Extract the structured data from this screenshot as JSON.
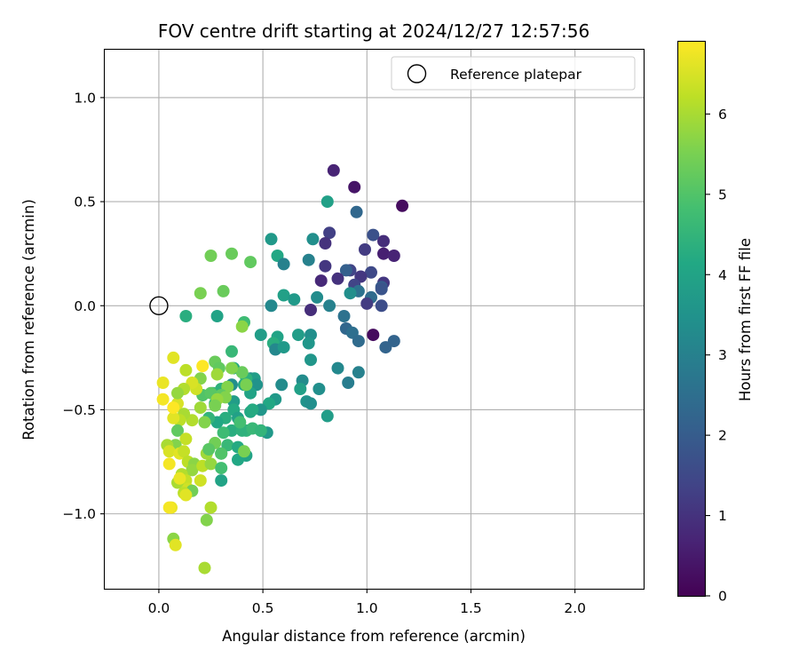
{
  "chart_data": {
    "type": "scatter",
    "title": "FOV centre drift starting at 2024/12/27 12:57:56",
    "xlabel": "Angular distance from reference (arcmin)",
    "ylabel": "Rotation from reference (arcmin)",
    "xlim": [
      -0.26,
      2.33
    ],
    "ylim": [
      -1.36,
      1.23
    ],
    "xticks": [
      0.0,
      0.5,
      1.0,
      1.5,
      2.0
    ],
    "xtick_labels": [
      "0.0",
      "0.5",
      "1.0",
      "1.5",
      "2.0"
    ],
    "yticks": [
      1.0,
      0.5,
      0.0,
      -0.5,
      -1.0
    ],
    "ytick_labels": [
      "1.0",
      "0.5",
      "0.0",
      "−0.5",
      "−1.0"
    ],
    "grid": true,
    "legend": {
      "position": "top-right",
      "entries": [
        "Reference platepar"
      ]
    },
    "reference_point": {
      "x": 0.0,
      "y": 0.0,
      "label": "Reference platepar",
      "marker": "open-circle"
    },
    "colorbar": {
      "label": "Hours from first FF file",
      "colormap": "viridis",
      "range": [
        0,
        6.9
      ],
      "ticks": [
        0,
        1,
        2,
        3,
        4,
        5,
        6
      ],
      "tick_labels": [
        "0",
        "1",
        "2",
        "3",
        "4",
        "5",
        "6"
      ]
    },
    "series": [
      {
        "points": [
          [
            0.84,
            0.65,
            0.7
          ],
          [
            0.94,
            0.57,
            0.4
          ],
          [
            1.17,
            0.48,
            0.2
          ],
          [
            0.95,
            0.45,
            2.3
          ],
          [
            0.82,
            0.35,
            1.3
          ],
          [
            1.03,
            0.34,
            1.7
          ],
          [
            0.8,
            0.3,
            1.0
          ],
          [
            1.08,
            0.31,
            0.9
          ],
          [
            0.99,
            0.27,
            1.2
          ],
          [
            1.08,
            0.25,
            0.6
          ],
          [
            1.13,
            0.24,
            0.7
          ],
          [
            0.8,
            0.19,
            1.1
          ],
          [
            0.92,
            0.17,
            1.4
          ],
          [
            0.9,
            0.17,
            2.1
          ],
          [
            1.02,
            0.16,
            1.5
          ],
          [
            1.08,
            0.11,
            1.1
          ],
          [
            0.86,
            0.13,
            1.0
          ],
          [
            0.97,
            0.14,
            1.1
          ],
          [
            0.78,
            0.12,
            0.8
          ],
          [
            0.94,
            0.1,
            1.4
          ],
          [
            1.07,
            0.09,
            2.0
          ],
          [
            0.96,
            0.07,
            2.6
          ],
          [
            1.07,
            0.08,
            1.8
          ],
          [
            0.92,
            0.06,
            3.4
          ],
          [
            1.02,
            0.04,
            2.4
          ],
          [
            1.0,
            0.01,
            1.2
          ],
          [
            1.07,
            0.0,
            1.6
          ],
          [
            0.73,
            -0.02,
            0.9
          ],
          [
            0.89,
            -0.05,
            2.6
          ],
          [
            0.9,
            -0.11,
            2.3
          ],
          [
            0.93,
            -0.13,
            2.5
          ],
          [
            0.96,
            -0.17,
            2.4
          ],
          [
            1.13,
            -0.17,
            2.2
          ],
          [
            1.03,
            -0.14,
            0.2
          ],
          [
            1.09,
            -0.2,
            2.2
          ],
          [
            0.81,
            0.5,
            3.9
          ],
          [
            0.74,
            0.32,
            3.4
          ],
          [
            0.54,
            0.32,
            3.7
          ],
          [
            0.72,
            0.22,
            3.0
          ],
          [
            0.57,
            0.24,
            4.1
          ],
          [
            0.6,
            0.2,
            3.0
          ],
          [
            0.76,
            0.04,
            3.3
          ],
          [
            0.6,
            0.05,
            3.9
          ],
          [
            0.65,
            0.03,
            3.7
          ],
          [
            0.82,
            0.0,
            3.0
          ],
          [
            0.54,
            0.0,
            3.2
          ],
          [
            0.49,
            -0.14,
            3.8
          ],
          [
            0.57,
            -0.15,
            4.0
          ],
          [
            0.55,
            -0.18,
            4.3
          ],
          [
            0.67,
            -0.14,
            3.8
          ],
          [
            0.73,
            -0.14,
            3.4
          ],
          [
            0.72,
            -0.18,
            3.6
          ],
          [
            0.56,
            -0.21,
            3.2
          ],
          [
            0.6,
            -0.2,
            3.7
          ],
          [
            0.73,
            -0.26,
            3.6
          ],
          [
            0.86,
            -0.3,
            3.2
          ],
          [
            0.96,
            -0.32,
            3.0
          ],
          [
            0.91,
            -0.37,
            2.9
          ],
          [
            0.69,
            -0.36,
            3.3
          ],
          [
            0.59,
            -0.38,
            3.3
          ],
          [
            0.68,
            -0.4,
            3.9
          ],
          [
            0.77,
            -0.4,
            3.4
          ],
          [
            0.81,
            -0.53,
            3.8
          ],
          [
            0.71,
            -0.46,
            3.5
          ],
          [
            0.73,
            -0.47,
            3.4
          ],
          [
            0.56,
            -0.45,
            3.7
          ],
          [
            0.53,
            -0.47,
            4.1
          ],
          [
            0.49,
            -0.5,
            3.6
          ],
          [
            0.44,
            -0.51,
            4.1
          ],
          [
            0.52,
            -0.61,
            3.7
          ],
          [
            0.49,
            -0.6,
            3.5
          ],
          [
            0.44,
            -0.35,
            3.2
          ],
          [
            0.46,
            -0.35,
            3.8
          ],
          [
            0.47,
            -0.38,
            3.5
          ],
          [
            0.44,
            -0.42,
            4.0
          ],
          [
            0.35,
            -0.38,
            3.4
          ],
          [
            0.36,
            -0.46,
            3.8
          ],
          [
            0.36,
            -0.5,
            4.2
          ],
          [
            0.38,
            -0.54,
            3.9
          ],
          [
            0.32,
            -0.54,
            4.3
          ],
          [
            0.35,
            -0.6,
            4.3
          ],
          [
            0.33,
            -0.67,
            4.6
          ],
          [
            0.38,
            -0.68,
            4.2
          ],
          [
            0.42,
            -0.72,
            4.0
          ],
          [
            0.38,
            -0.74,
            4.1
          ],
          [
            0.3,
            -0.71,
            4.1
          ],
          [
            0.3,
            -0.84,
            4.0
          ],
          [
            0.31,
            -0.61,
            4.7
          ],
          [
            0.28,
            -0.56,
            4.1
          ],
          [
            0.27,
            -0.47,
            4.5
          ],
          [
            0.26,
            -0.42,
            4.4
          ],
          [
            0.24,
            -0.54,
            4.5
          ],
          [
            0.41,
            -0.38,
            4.1
          ],
          [
            0.42,
            -0.6,
            4.5
          ],
          [
            0.4,
            -0.6,
            4.4
          ],
          [
            0.39,
            -0.56,
            4.8
          ],
          [
            0.45,
            -0.59,
            4.6
          ],
          [
            0.49,
            -0.6,
            4.5
          ],
          [
            0.45,
            -0.5,
            4.2
          ],
          [
            0.3,
            -0.4,
            4.4
          ],
          [
            0.42,
            -0.35,
            4.4
          ],
          [
            0.36,
            -0.3,
            4.2
          ],
          [
            0.35,
            -0.22,
            4.6
          ],
          [
            0.41,
            -0.08,
            4.7
          ],
          [
            0.13,
            -0.05,
            4.3
          ],
          [
            0.28,
            -0.05,
            4.0
          ],
          [
            0.44,
            0.21,
            5.2
          ],
          [
            0.35,
            0.25,
            5.3
          ],
          [
            0.25,
            0.24,
            5.4
          ],
          [
            0.31,
            0.07,
            5.3
          ],
          [
            0.2,
            0.06,
            5.5
          ],
          [
            0.4,
            -0.1,
            5.7
          ],
          [
            0.33,
            -0.39,
            5.6
          ],
          [
            0.4,
            -0.32,
            5.3
          ],
          [
            0.42,
            -0.38,
            5.5
          ],
          [
            0.27,
            -0.27,
            5.3
          ],
          [
            0.29,
            -0.3,
            5.2
          ],
          [
            0.35,
            -0.3,
            5.6
          ],
          [
            0.28,
            -0.33,
            5.9
          ],
          [
            0.2,
            -0.35,
            5.6
          ],
          [
            0.21,
            -0.43,
            5.0
          ],
          [
            0.3,
            -0.43,
            5.2
          ],
          [
            0.25,
            -0.42,
            5.1
          ],
          [
            0.32,
            -0.44,
            5.6
          ],
          [
            0.28,
            -0.45,
            5.8
          ],
          [
            0.27,
            -0.48,
            5.5
          ],
          [
            0.2,
            -0.49,
            5.9
          ],
          [
            0.22,
            -0.56,
            5.6
          ],
          [
            0.16,
            -0.55,
            6.1
          ],
          [
            0.12,
            -0.52,
            6.0
          ],
          [
            0.1,
            -0.55,
            6.2
          ],
          [
            0.07,
            -0.54,
            6.6
          ],
          [
            0.09,
            -0.6,
            5.2
          ],
          [
            0.13,
            -0.64,
            6.3
          ],
          [
            0.08,
            -0.67,
            5.6
          ],
          [
            0.04,
            -0.67,
            6.0
          ],
          [
            0.05,
            -0.7,
            6.5
          ],
          [
            0.1,
            -0.71,
            6.6
          ],
          [
            0.12,
            -0.7,
            6.3
          ],
          [
            0.14,
            -0.75,
            6.2
          ],
          [
            0.17,
            -0.76,
            5.7
          ],
          [
            0.16,
            -0.79,
            5.8
          ],
          [
            0.11,
            -0.81,
            6.1
          ],
          [
            0.13,
            -0.84,
            6.3
          ],
          [
            0.09,
            -0.85,
            6.0
          ],
          [
            0.05,
            -0.76,
            6.8
          ],
          [
            0.1,
            -0.83,
            6.7
          ],
          [
            0.14,
            -0.88,
            6.4
          ],
          [
            0.16,
            -0.89,
            5.4
          ],
          [
            0.12,
            -0.9,
            6.2
          ],
          [
            0.13,
            -0.91,
            6.6
          ],
          [
            0.2,
            -0.84,
            6.4
          ],
          [
            0.21,
            -0.77,
            6.2
          ],
          [
            0.25,
            -0.76,
            5.8
          ],
          [
            0.23,
            -0.71,
            5.9
          ],
          [
            0.27,
            -0.66,
            5.4
          ],
          [
            0.24,
            -0.69,
            5.1
          ],
          [
            0.3,
            -0.71,
            5.0
          ],
          [
            0.41,
            -0.7,
            5.5
          ],
          [
            0.3,
            -0.78,
            4.8
          ],
          [
            0.25,
            -0.97,
            6.1
          ],
          [
            0.23,
            -1.03,
            5.6
          ],
          [
            0.06,
            -0.97,
            6.7
          ],
          [
            0.05,
            -0.97,
            6.8
          ],
          [
            0.07,
            -1.12,
            5.7
          ],
          [
            0.08,
            -1.15,
            6.6
          ],
          [
            0.22,
            -1.26,
            6.0
          ],
          [
            0.02,
            -0.37,
            6.7
          ],
          [
            0.02,
            -0.45,
            6.8
          ],
          [
            0.07,
            -0.25,
            6.6
          ],
          [
            0.13,
            -0.31,
            6.2
          ],
          [
            0.18,
            -0.4,
            6.4
          ],
          [
            0.21,
            -0.29,
            6.9
          ],
          [
            0.16,
            -0.37,
            6.5
          ],
          [
            0.12,
            -0.4,
            6.1
          ],
          [
            0.09,
            -0.47,
            6.5
          ],
          [
            0.09,
            -0.42,
            5.8
          ],
          [
            0.07,
            -0.49,
            6.9
          ]
        ]
      }
    ]
  }
}
